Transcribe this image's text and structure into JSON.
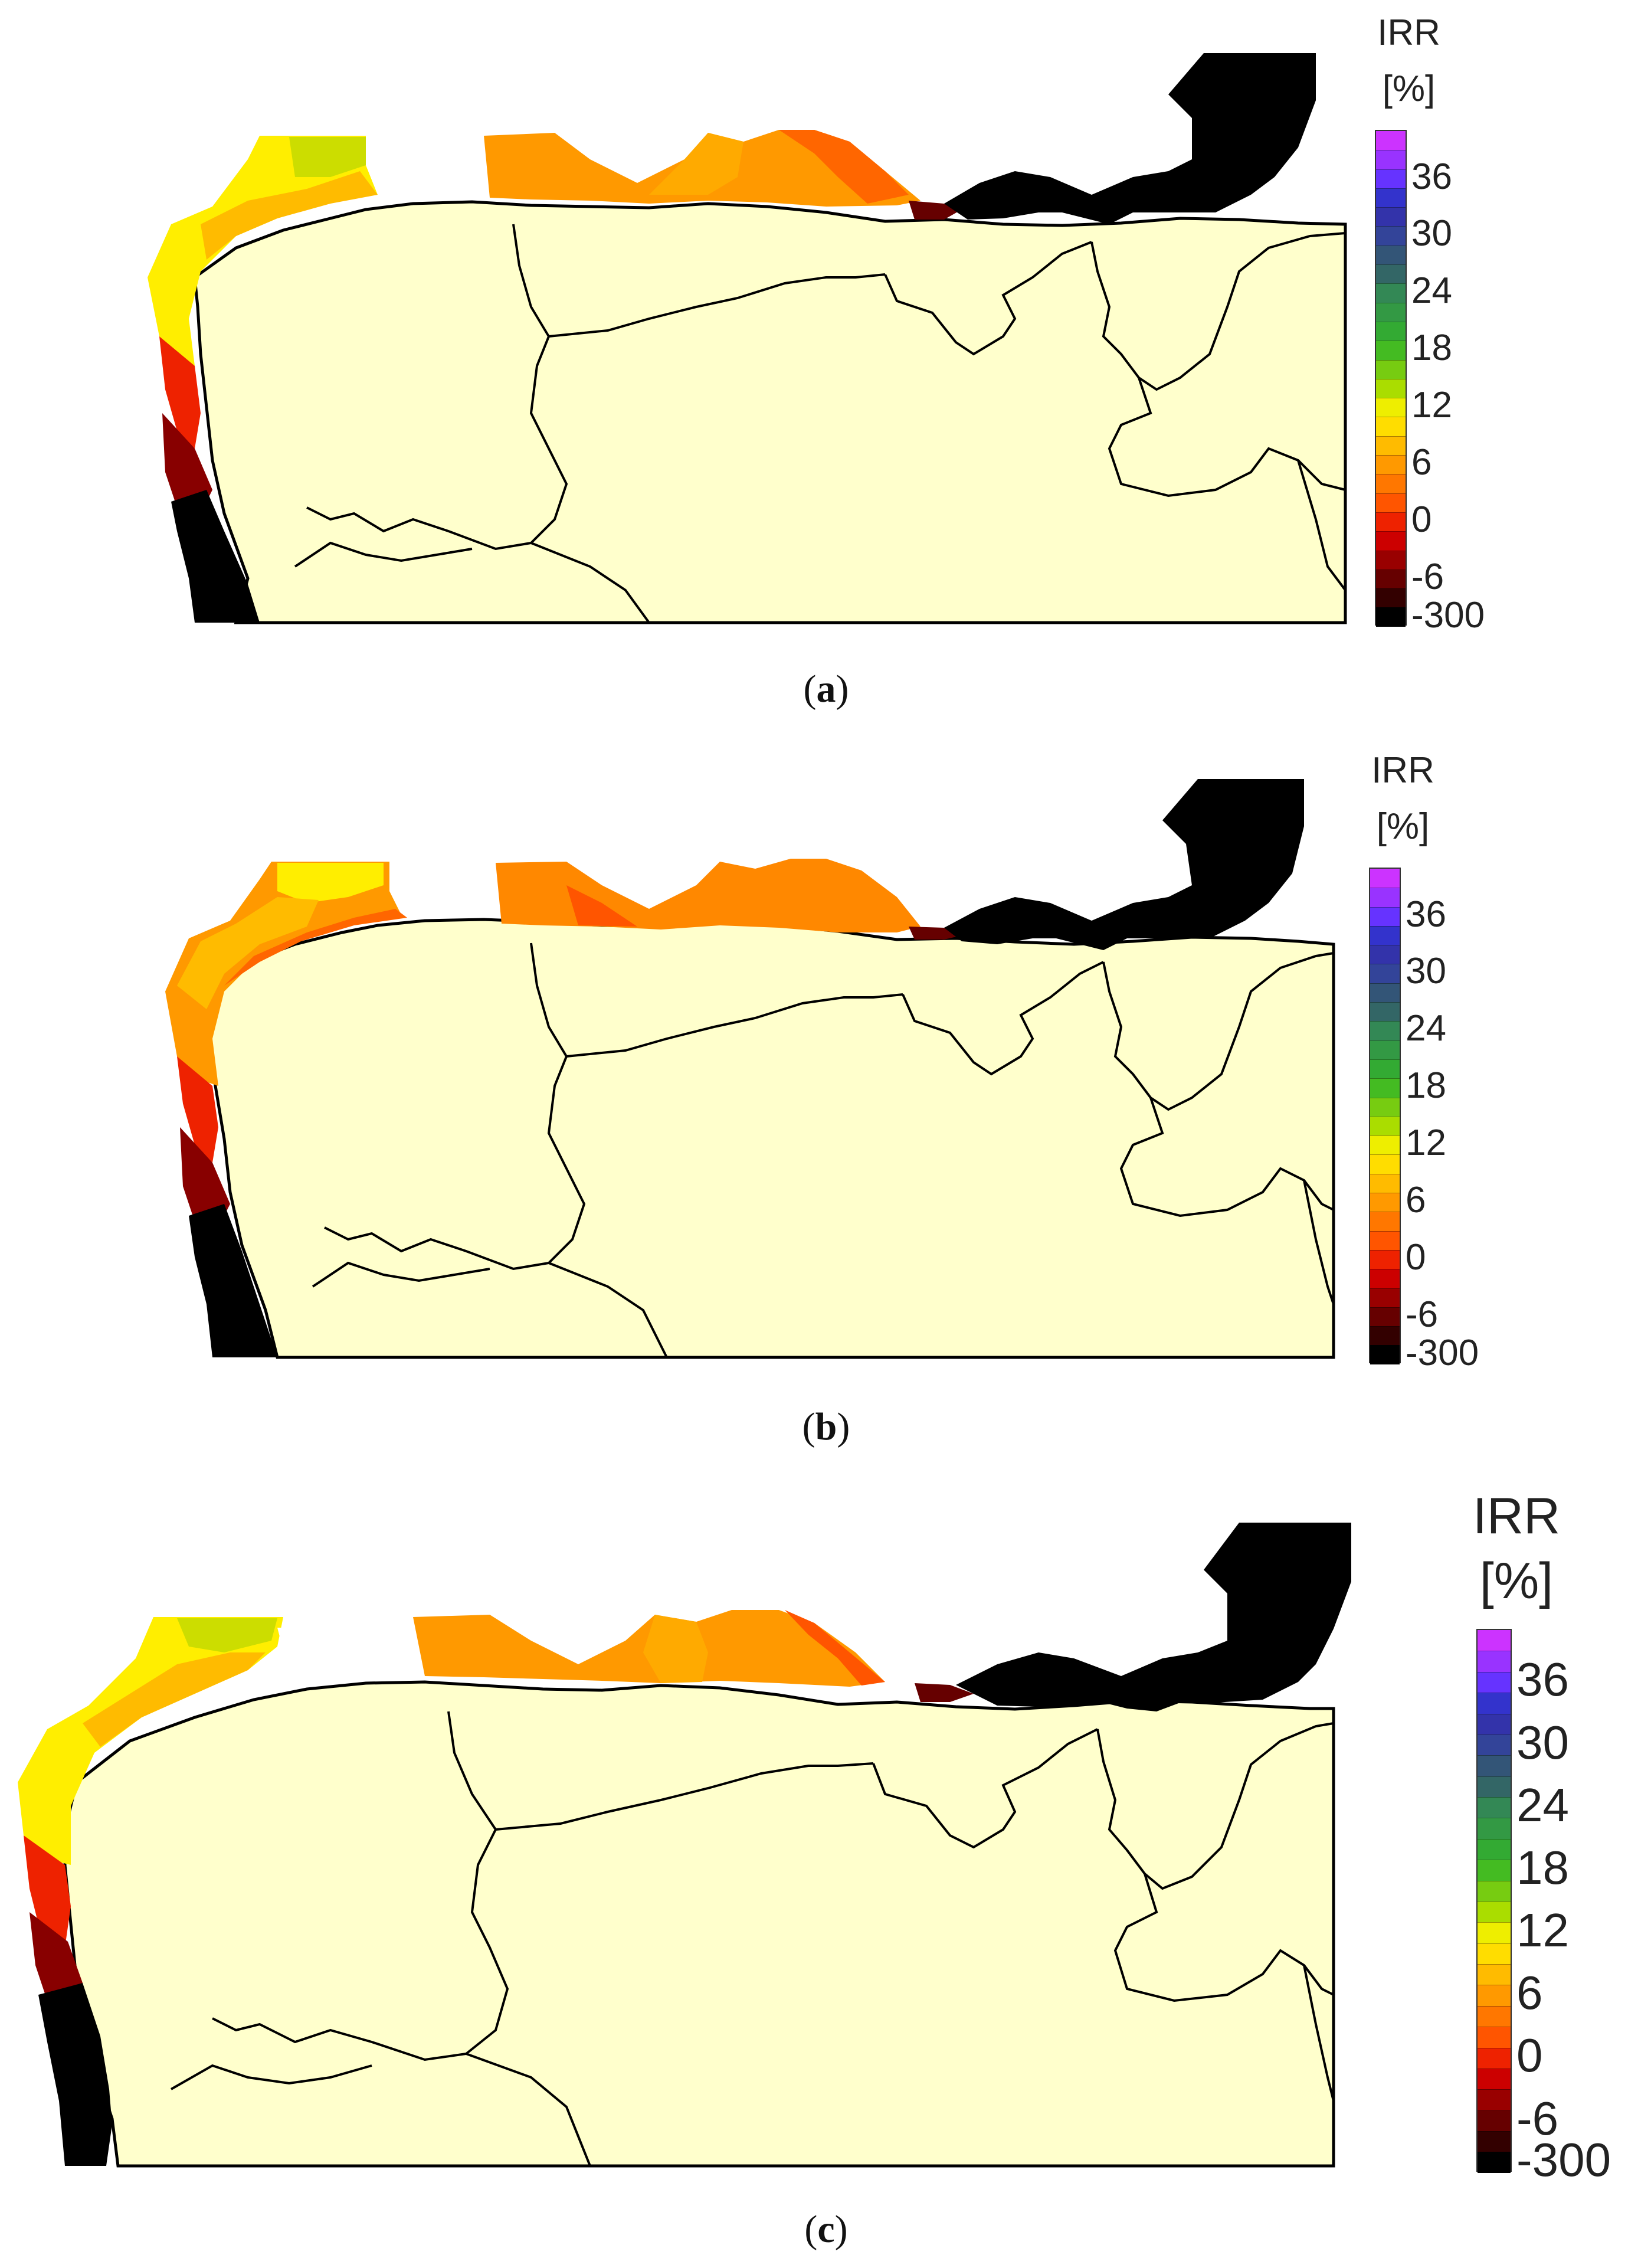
{
  "colorbar": {
    "title": "IRR",
    "unit": "[%]",
    "ticks": [
      "36",
      "30",
      "24",
      "18",
      "12",
      "6",
      "0",
      "-6",
      "-300"
    ],
    "band_colors": [
      "#cc33ff",
      "#9933ff",
      "#6633ff",
      "#3333cc",
      "#3333aa",
      "#334499",
      "#335577",
      "#336666",
      "#338855",
      "#339944",
      "#33aa33",
      "#44bb22",
      "#77cc11",
      "#aadd00",
      "#eeee00",
      "#ffdd00",
      "#ffbb00",
      "#ff9900",
      "#ff7700",
      "#ff5500",
      "#ee2200",
      "#cc0000",
      "#990000",
      "#660000",
      "#330000",
      "#000000"
    ]
  },
  "region_colors": {
    "land": "#ffffcc",
    "land_border": "#000000",
    "sea": "#ffffff"
  },
  "panels": [
    {
      "id": "a",
      "caption_open": "(",
      "caption_label": "a",
      "caption_close": ")"
    },
    {
      "id": "b",
      "caption_open": "(",
      "caption_label": "b",
      "caption_close": ")"
    },
    {
      "id": "c",
      "caption_open": "(",
      "caption_label": "c",
      "caption_close": ")"
    }
  ]
}
